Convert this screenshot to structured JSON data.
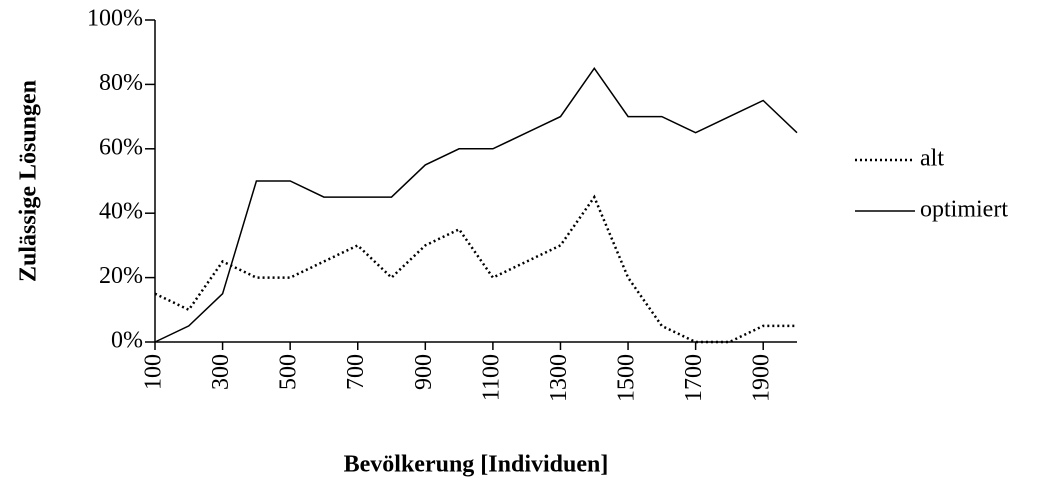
{
  "chart_data": {
    "type": "line",
    "x_label": "Bevölkerung [Individuen]",
    "y_label": "Zulässige Lösungen",
    "x": [
      100,
      200,
      300,
      400,
      500,
      600,
      700,
      800,
      900,
      1000,
      1100,
      1200,
      1300,
      1400,
      1500,
      1600,
      1700,
      1800,
      1900,
      2000
    ],
    "series": [
      {
        "name": "alt",
        "color": "#000000",
        "dash": "dotted",
        "values": [
          15,
          10,
          25,
          20,
          20,
          25,
          30,
          20,
          30,
          35,
          20,
          25,
          30,
          45,
          20,
          5,
          0,
          0,
          5,
          5
        ]
      },
      {
        "name": "optimiert",
        "color": "#000000",
        "dash": "solid",
        "values": [
          0,
          5,
          15,
          50,
          50,
          45,
          45,
          45,
          55,
          60,
          60,
          65,
          70,
          85,
          70,
          70,
          65,
          70,
          75,
          65
        ]
      }
    ],
    "xlim": [
      100,
      2000
    ],
    "xticks": [
      100,
      300,
      500,
      700,
      900,
      1100,
      1300,
      1500,
      1700,
      1900
    ],
    "ylim": [
      0,
      100
    ],
    "yticks": [
      {
        "value": 0,
        "label": "0%"
      },
      {
        "value": 20,
        "label": "20%"
      },
      {
        "value": 40,
        "label": "40%"
      },
      {
        "value": 60,
        "label": "60%"
      },
      {
        "value": 80,
        "label": "80%"
      },
      {
        "value": 100,
        "label": "100%"
      }
    ],
    "grid": false,
    "legend": "right"
  }
}
